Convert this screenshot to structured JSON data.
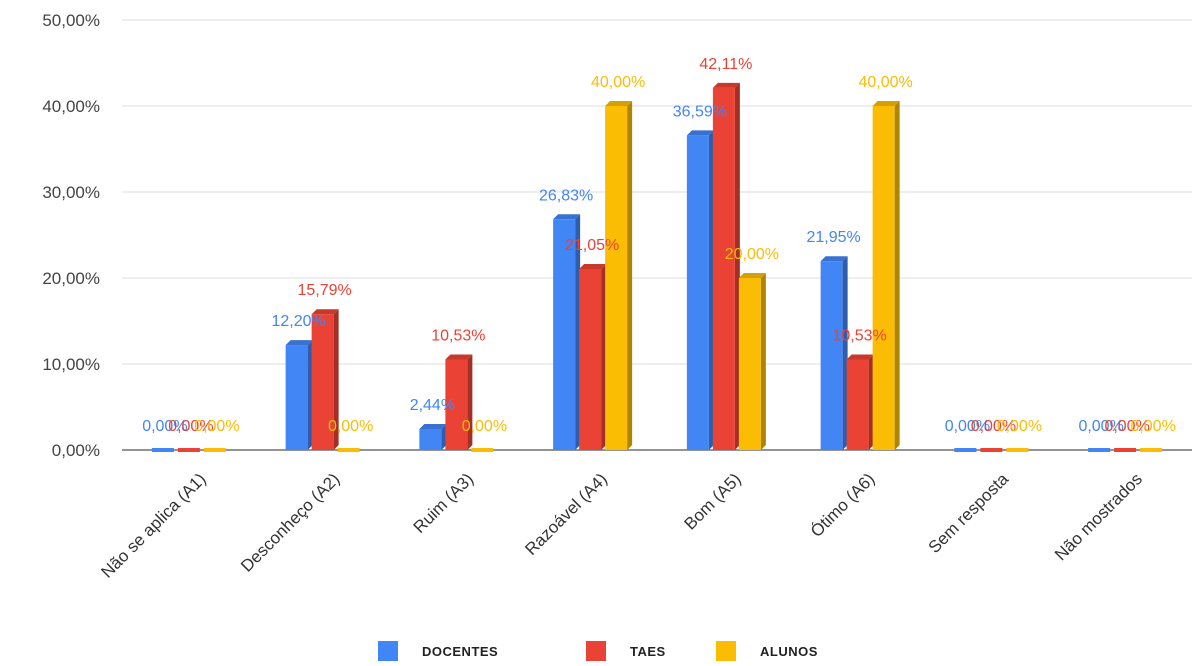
{
  "chart_data": {
    "type": "bar",
    "categories": [
      "Não se aplica (A1)",
      "Desconheço (A2)",
      "Ruim (A3)",
      "Razoável (A4)",
      "Bom (A5)",
      "Ótimo (A6)",
      "Sem resposta",
      "Não mostrados"
    ],
    "series": [
      {
        "name": "DOCENTES",
        "color": "#4285F4",
        "values": [
          0,
          12.2,
          2.44,
          26.83,
          36.59,
          21.95,
          0,
          0
        ],
        "labels": [
          "0,00%",
          "12,20%",
          "2,44%",
          "26,83%",
          "36,59%",
          "21,95%",
          "0,00%",
          "0,00%"
        ]
      },
      {
        "name": "TAES",
        "color": "#EA4335",
        "values": [
          0,
          15.79,
          10.53,
          21.05,
          42.11,
          10.53,
          0,
          0
        ],
        "labels": [
          "0,00%",
          "15,79%",
          "10,53%",
          "21,05%",
          "42,11%",
          "10,53%",
          "0,00%",
          "0,00%"
        ]
      },
      {
        "name": "ALUNOS",
        "color": "#FBBC04",
        "values": [
          0,
          0,
          0,
          40.0,
          20.0,
          40.0,
          0,
          0
        ],
        "labels": [
          "0,00%",
          "0,00%",
          "0,00%",
          "40,00%",
          "20,00%",
          "40,00%",
          "0,00%",
          "0,00%"
        ]
      }
    ],
    "ylim": [
      0,
      50
    ],
    "yticks": [
      0,
      10,
      20,
      30,
      40,
      50
    ],
    "ytick_labels": [
      "0,00%",
      "10,00%",
      "20,00%",
      "30,00%",
      "40,00%",
      "50,00%"
    ],
    "grid": true,
    "legend_position": "bottom"
  }
}
